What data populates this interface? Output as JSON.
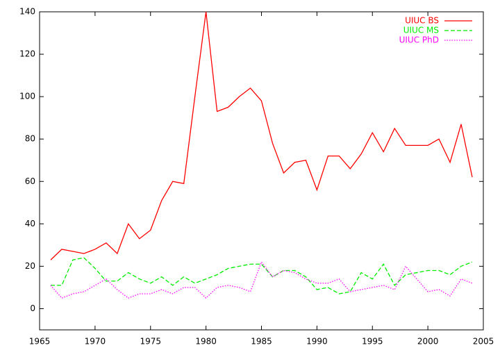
{
  "chart_data": {
    "type": "line",
    "x": [
      1966,
      1967,
      1968,
      1969,
      1970,
      1971,
      1972,
      1973,
      1974,
      1975,
      1976,
      1977,
      1978,
      1979,
      1980,
      1981,
      1982,
      1983,
      1984,
      1985,
      1986,
      1987,
      1988,
      1989,
      1990,
      1991,
      1992,
      1993,
      1994,
      1995,
      1996,
      1997,
      1998,
      1999,
      2000,
      2001,
      2002,
      2003,
      2004
    ],
    "series": [
      {
        "name": "UIUC BS",
        "color": "#ff0000",
        "line_style": "solid",
        "values": [
          23,
          28,
          27,
          26,
          28,
          31,
          26,
          40,
          33,
          37,
          51,
          60,
          59,
          100,
          140,
          93,
          95,
          100,
          104,
          98,
          78,
          64,
          69,
          70,
          56,
          72,
          72,
          66,
          73,
          83,
          74,
          85,
          77,
          77,
          77,
          80,
          69,
          87,
          62
        ]
      },
      {
        "name": "UIUC MS",
        "color": "#00ee00",
        "line_style": "dashed",
        "values": [
          11,
          11,
          23,
          24,
          19,
          13,
          13,
          17,
          14,
          12,
          15,
          11,
          15,
          12,
          14,
          16,
          19,
          20,
          21,
          21,
          15,
          18,
          18,
          15,
          9,
          10,
          7,
          8,
          17,
          14,
          21,
          11,
          16,
          17,
          18,
          18,
          16,
          20,
          22
        ]
      },
      {
        "name": "UIUC PhD",
        "color": "#ff00ff",
        "line_style": "dotted",
        "values": [
          11,
          5,
          7,
          8,
          11,
          14,
          9,
          5,
          7,
          7,
          9,
          7,
          10,
          10,
          5,
          10,
          11,
          10,
          8,
          22,
          15,
          18,
          17,
          14,
          12,
          12,
          14,
          8,
          9,
          10,
          11,
          9,
          20,
          14,
          8,
          9,
          6,
          14,
          12
        ]
      }
    ],
    "xlim": [
      1965,
      2005
    ],
    "xticks": [
      1965,
      1970,
      1975,
      1980,
      1985,
      1990,
      1995,
      2000,
      2005
    ],
    "ylim": [
      -10,
      140
    ],
    "yticks": [
      0,
      20,
      40,
      60,
      80,
      100,
      120,
      140
    ],
    "grid": false,
    "legend": "top-right"
  }
}
